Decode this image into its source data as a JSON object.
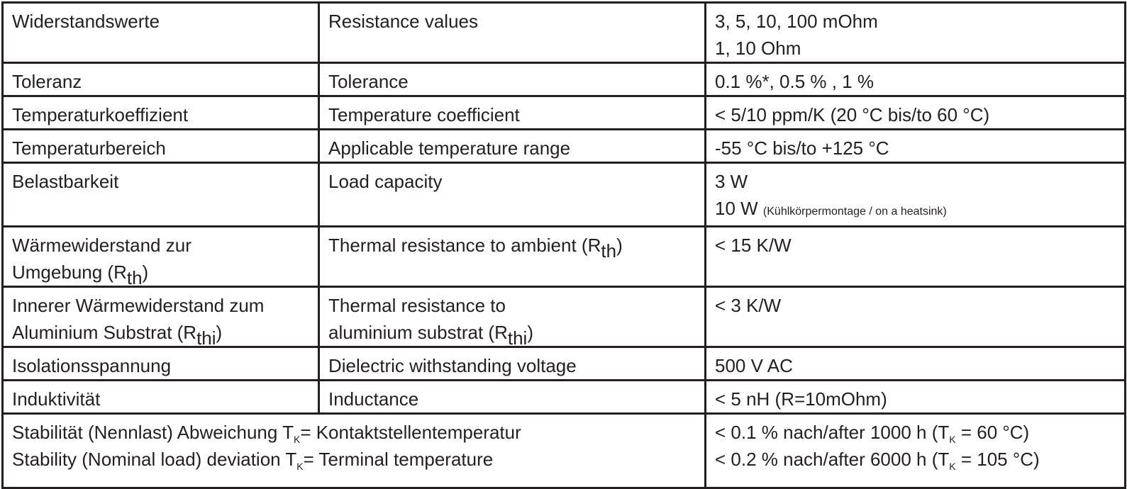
{
  "rows": [
    {
      "de": "Widerstandswerte",
      "en": "Resistance values",
      "value_lines": [
        "3, 5, 10, 100 mOhm",
        "1, 10 Ohm"
      ]
    },
    {
      "de": "Toleranz",
      "en": "Tolerance",
      "value": "0.1 %*, 0.5 % , 1 %"
    },
    {
      "de": "Temperaturkoeffizient",
      "en": "Temperature coefficient",
      "value": "< 5/10 ppm/K (20 °C bis/to 60 °C)"
    },
    {
      "de": "Temperaturbereich",
      "en": "Applicable temperature range",
      "value": "-55 °C bis/to +125 °C"
    },
    {
      "de": "Belastbarkeit",
      "en": "Load capacity",
      "value_line1": "3 W",
      "value_line2": "10 W",
      "value_note": "(Kühlkörpermontage / on a heatsink)"
    },
    {
      "de_line1": "Wärmewiderstand zur",
      "de_line2": "Umgebung (R",
      "de_sub": "th",
      "de_close": ")",
      "en": "Thermal resistance to ambient (R",
      "en_sub": "th",
      "en_close": ")",
      "value": "< 15 K/W"
    },
    {
      "de_line1": "Innerer Wärmewiderstand zum",
      "de_line2": "Aluminium Substrat (R",
      "de_sub": "thi",
      "de_close": ")",
      "en_line1": "Thermal resistance to",
      "en_line2": "aluminium substrat (R",
      "en_sub": "thi",
      "en_close": ")",
      "value": "< 3 K/W"
    },
    {
      "de": "Isolationsspannung",
      "en": "Dielectric withstanding voltage",
      "value": "500 V AC"
    },
    {
      "de": "Induktivität",
      "en": "Inductance",
      "value": "< 5 nH (R=10mOhm)"
    },
    {
      "label_line1_a": "Stabilität (Nennlast) Abweichung T",
      "label_line1_sub": "K",
      "label_line1_b": "= Kontaktstellentemperatur",
      "label_line2_a": "Stability (Nominal load) deviation T",
      "label_line2_sub": "K",
      "label_line2_b": "= Terminal temperature",
      "value_line1_a": "< 0.1 % nach/after 1000 h (T",
      "value_line1_sub": "K",
      "value_line1_b": " = 60 °C)",
      "value_line2_a": "< 0.2 % nach/after 6000 h (T",
      "value_line2_sub": "K",
      "value_line2_b": " = 105 °C)"
    }
  ]
}
